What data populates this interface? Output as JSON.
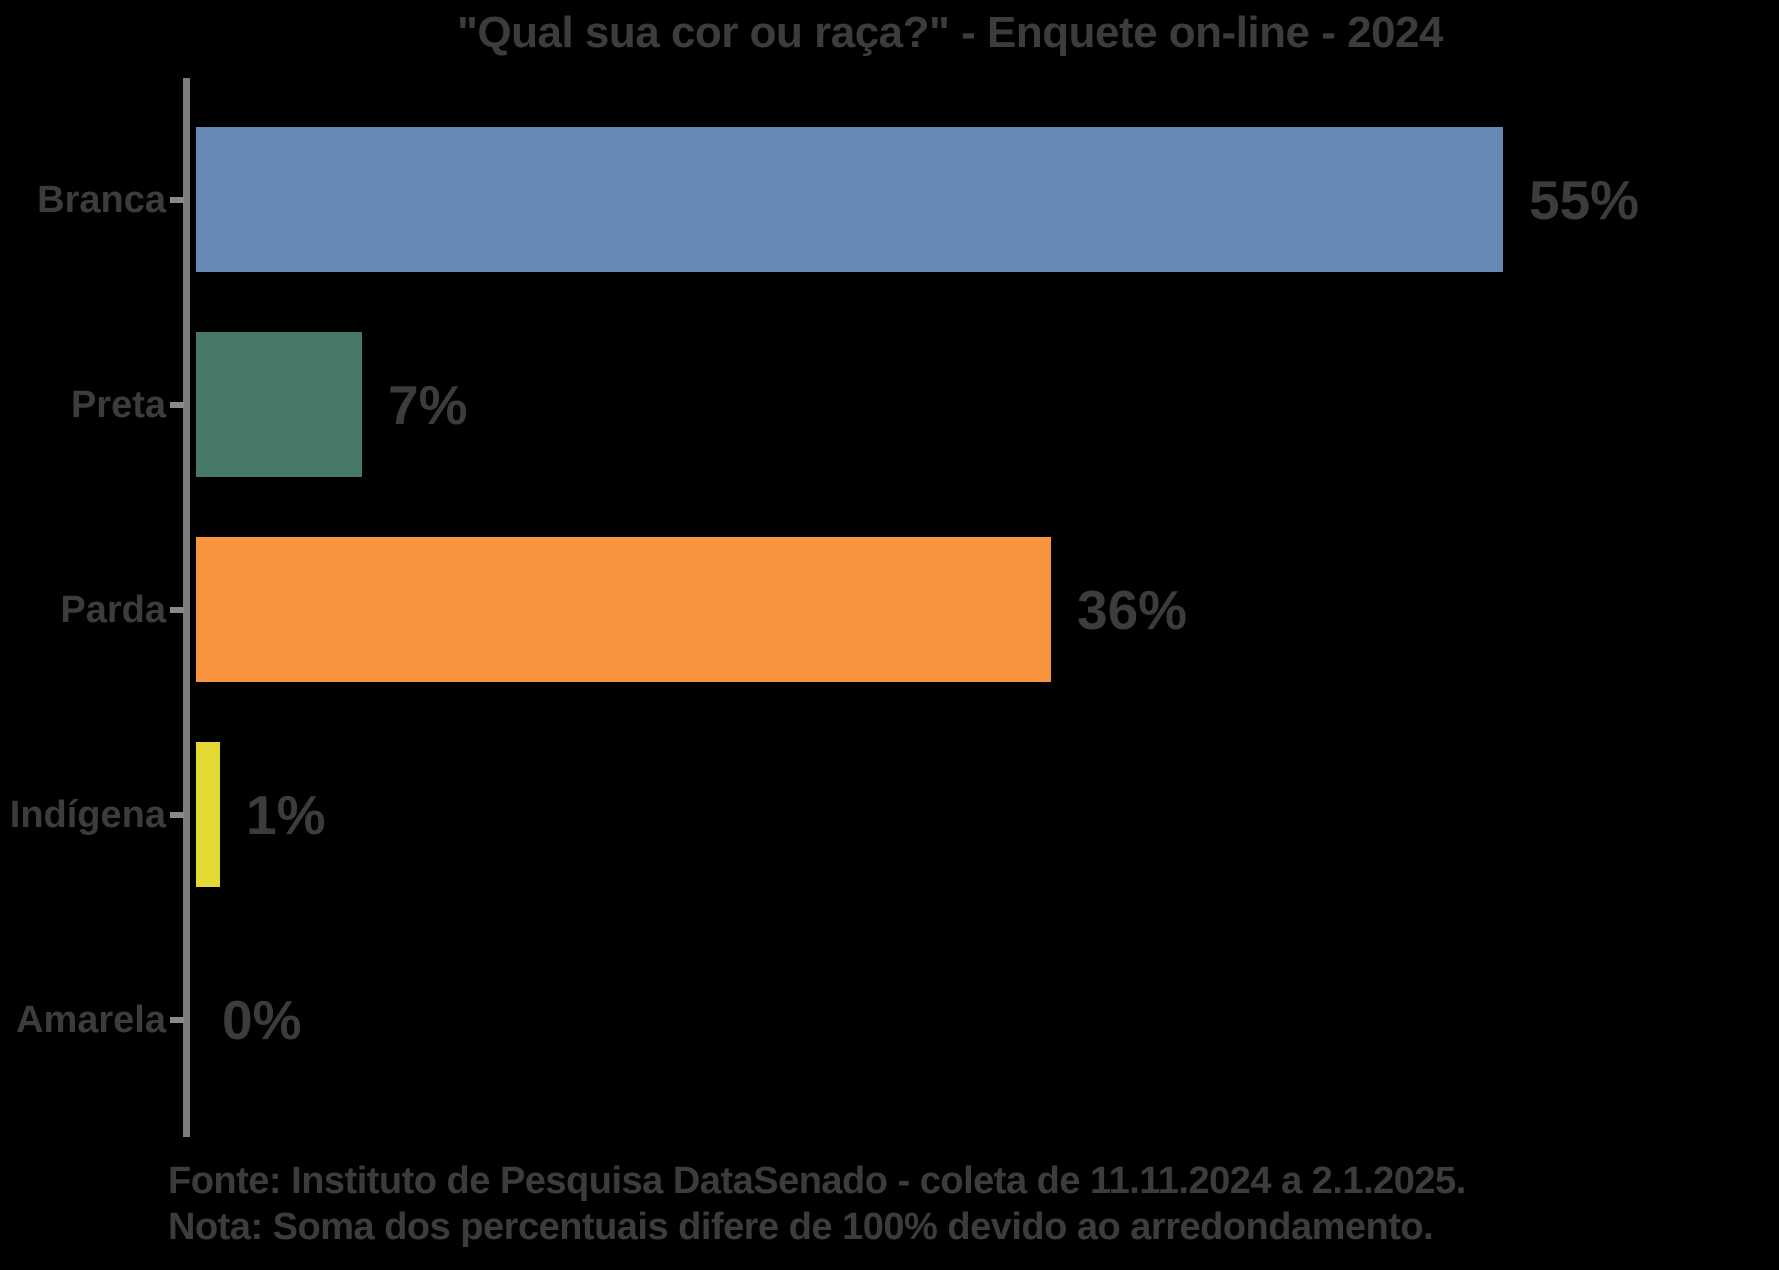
{
  "chart_data": {
    "type": "bar",
    "orientation": "horizontal",
    "title": "\"Qual sua cor ou raça?\" - Enquete on-line - 2024",
    "categories": [
      "Branca",
      "Preta",
      "Parda",
      "Indígena",
      "Amarela"
    ],
    "values": [
      55,
      7,
      36,
      1,
      0
    ],
    "value_labels": [
      "55%",
      "7%",
      "36%",
      "1%",
      "0%"
    ],
    "bar_colors": [
      "#6589b2",
      "#487968",
      "#f9943e",
      "#e3d935",
      null
    ],
    "xlabel": "",
    "ylabel": "",
    "grid": false,
    "legend": false,
    "value_labels_position": "end-of-bar"
  },
  "footer": {
    "fonte": "Fonte: Instituto de Pesquisa DataSenado - coleta de 11.11.2024 a 2.1.2025.",
    "nota": "Nota: Soma dos percentuais difere de 100% devido ao arredondamento."
  },
  "colors": {
    "background": "#000000",
    "text": "#3c3c3c",
    "axis": "#7d7d7d",
    "tick": "#8a8a8a"
  }
}
